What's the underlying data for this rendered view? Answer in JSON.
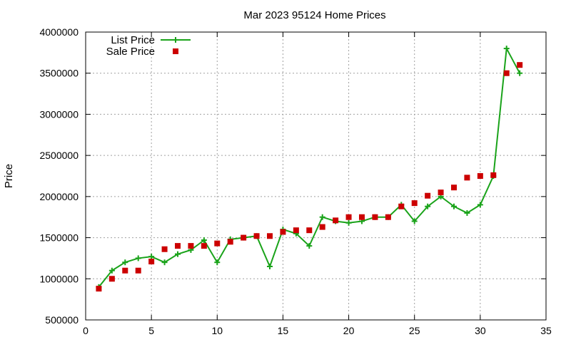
{
  "chart_data": {
    "type": "line",
    "title": "Mar 2023 95124 Home Prices",
    "xlabel": "",
    "ylabel": "Price",
    "xlim": [
      0,
      35
    ],
    "ylim": [
      500000,
      4000000
    ],
    "x_ticks": [
      0,
      5,
      10,
      15,
      20,
      25,
      30,
      35
    ],
    "y_ticks": [
      500000,
      1000000,
      1500000,
      2000000,
      2500000,
      3000000,
      3500000,
      4000000
    ],
    "grid": true,
    "legend_placement": "top-left",
    "series": [
      {
        "name": "List Price",
        "style": "line-with-plus-markers",
        "color": "#1aa31a",
        "x": [
          1,
          2,
          3,
          4,
          5,
          6,
          7,
          8,
          9,
          10,
          11,
          12,
          13,
          14,
          15,
          16,
          17,
          18,
          19,
          20,
          21,
          22,
          23,
          24,
          25,
          26,
          27,
          28,
          29,
          30,
          31,
          32,
          33
        ],
        "values": [
          900000,
          1100000,
          1200000,
          1250000,
          1270000,
          1200000,
          1300000,
          1350000,
          1470000,
          1200000,
          1480000,
          1500000,
          1520000,
          1150000,
          1600000,
          1550000,
          1400000,
          1750000,
          1700000,
          1680000,
          1700000,
          1750000,
          1750000,
          1900000,
          1700000,
          1880000,
          2000000,
          1880000,
          1800000,
          1900000,
          2250000,
          3800000,
          3500000
        ]
      },
      {
        "name": "Sale Price",
        "style": "square-markers",
        "color": "#cc0000",
        "x": [
          1,
          2,
          3,
          4,
          5,
          6,
          7,
          8,
          9,
          10,
          11,
          12,
          13,
          14,
          15,
          16,
          17,
          18,
          19,
          20,
          21,
          22,
          23,
          24,
          25,
          26,
          27,
          28,
          29,
          30,
          31,
          32,
          33
        ],
        "values": [
          880000,
          1000000,
          1100000,
          1100000,
          1210000,
          1360000,
          1400000,
          1400000,
          1400000,
          1430000,
          1450000,
          1500000,
          1520000,
          1520000,
          1570000,
          1590000,
          1590000,
          1630000,
          1710000,
          1750000,
          1750000,
          1750000,
          1750000,
          1880000,
          1920000,
          2010000,
          2050000,
          2110000,
          2230000,
          2250000,
          2260000,
          3500000,
          3600000
        ]
      }
    ]
  }
}
